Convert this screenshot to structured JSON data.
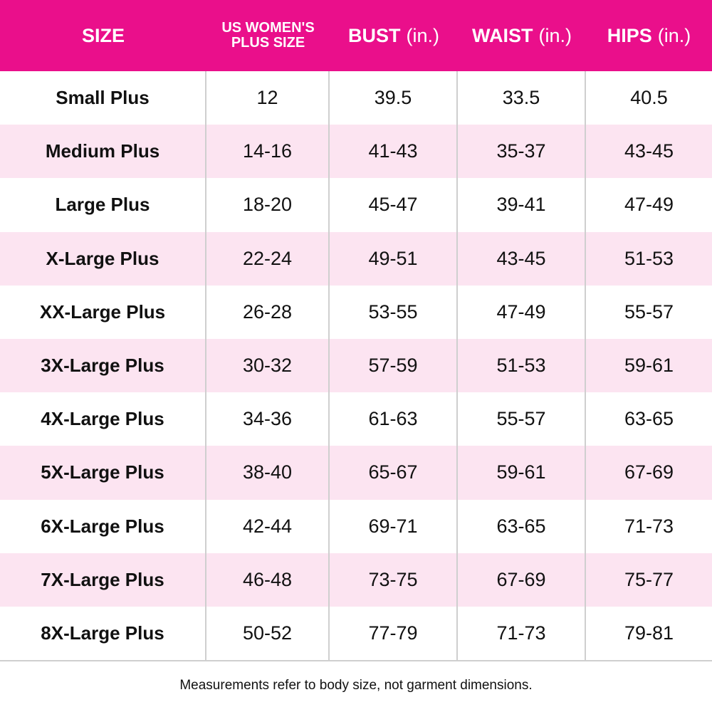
{
  "table": {
    "header": [
      {
        "label": "SIZE"
      },
      {
        "label": "US WOMEN'S PLUS SIZE"
      },
      {
        "label": "BUST",
        "unit": "(in.)"
      },
      {
        "label": "WAIST",
        "unit": "(in.)"
      },
      {
        "label": "HIPS",
        "unit": "(in.)"
      }
    ],
    "rows": [
      [
        "Small Plus",
        "12",
        "39.5",
        "33.5",
        "40.5"
      ],
      [
        "Medium Plus",
        "14-16",
        "41-43",
        "35-37",
        "43-45"
      ],
      [
        "Large Plus",
        "18-20",
        "45-47",
        "39-41",
        "47-49"
      ],
      [
        "X-Large Plus",
        "22-24",
        "49-51",
        "43-45",
        "51-53"
      ],
      [
        "XX-Large Plus",
        "26-28",
        "53-55",
        "47-49",
        "55-57"
      ],
      [
        "3X-Large Plus",
        "30-32",
        "57-59",
        "51-53",
        "59-61"
      ],
      [
        "4X-Large Plus",
        "34-36",
        "61-63",
        "55-57",
        "63-65"
      ],
      [
        "5X-Large Plus",
        "38-40",
        "65-67",
        "59-61",
        "67-69"
      ],
      [
        "6X-Large Plus",
        "42-44",
        "69-71",
        "63-65",
        "71-73"
      ],
      [
        "7X-Large Plus",
        "46-48",
        "73-75",
        "67-69",
        "75-77"
      ],
      [
        "8X-Large Plus",
        "50-52",
        "77-79",
        "71-73",
        "79-81"
      ]
    ],
    "footnote": "Measurements refer to body size, not garment dimensions."
  }
}
